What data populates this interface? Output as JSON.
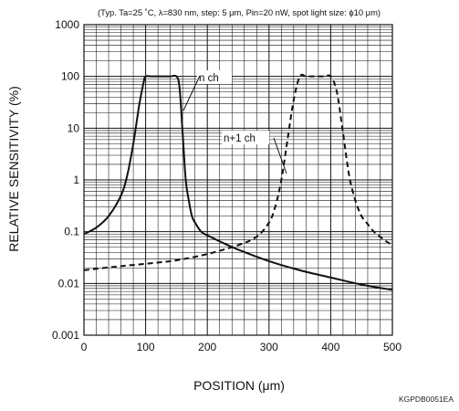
{
  "chart_data": {
    "type": "line",
    "note": "(Typ. Ta=25 ˚C, λ=830 nm, step: 5 μm, Pin=20 nW, spot light size: ϕ10 μm)",
    "xlabel": "POSITION (μm)",
    "ylabel": "RELATIVE SENSITIVITY (%)",
    "xlim": [
      0,
      500
    ],
    "ylim": [
      0.001,
      1000
    ],
    "yscale": "log",
    "x_ticks": [
      "0",
      "100",
      "200",
      "300",
      "400",
      "500"
    ],
    "y_ticks": [
      "0.001",
      "0.01",
      "0.1",
      "1",
      "10",
      "100",
      "1000"
    ],
    "grid": true,
    "code": "KGPDB0051EA",
    "series": [
      {
        "name": "n ch",
        "style": "solid",
        "x": [
          0,
          20,
          40,
          60,
          70,
          80,
          90,
          97,
          100,
          110,
          120,
          130,
          140,
          150,
          155,
          160,
          165,
          170,
          175,
          180,
          190,
          200,
          220,
          250,
          300,
          350,
          400,
          450,
          500
        ],
        "y": [
          0.09,
          0.12,
          0.2,
          0.5,
          1.2,
          5,
          30,
          80,
          100,
          100,
          100,
          100,
          100,
          100,
          60,
          8,
          1,
          0.4,
          0.2,
          0.15,
          0.1,
          0.085,
          0.065,
          0.045,
          0.027,
          0.018,
          0.013,
          0.0095,
          0.0075
        ]
      },
      {
        "name": "n+1 ch",
        "style": "dashed",
        "x": [
          0,
          50,
          100,
          150,
          200,
          250,
          280,
          300,
          310,
          320,
          330,
          340,
          350,
          360,
          370,
          380,
          390,
          400,
          410,
          420,
          430,
          440,
          450,
          460,
          470,
          480,
          490,
          500
        ],
        "y": [
          0.018,
          0.021,
          0.024,
          0.028,
          0.037,
          0.055,
          0.08,
          0.15,
          0.3,
          1,
          6,
          35,
          100,
          100,
          100,
          100,
          100,
          100,
          50,
          8,
          1.2,
          0.4,
          0.2,
          0.14,
          0.1,
          0.08,
          0.065,
          0.055
        ]
      }
    ]
  }
}
